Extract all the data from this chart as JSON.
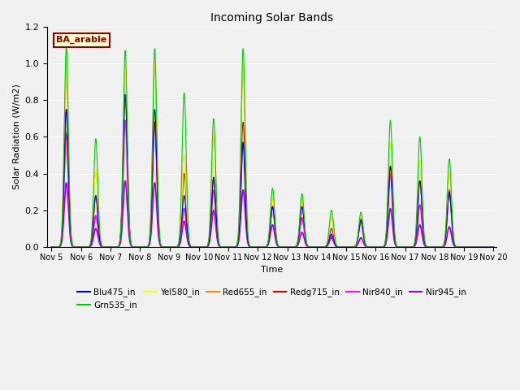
{
  "title": "Incoming Solar Bands",
  "xlabel": "Time",
  "ylabel": "Solar Radiation (W/m2)",
  "annotation_text": "BA_arable",
  "bg_color": "#f0f0f0",
  "ylim": [
    0.0,
    1.2
  ],
  "xlim": [
    4.85,
    20.1
  ],
  "series": [
    {
      "label": "Blu475_in",
      "color": "#0000cc",
      "lw": 0.8
    },
    {
      "label": "Grn535_in",
      "color": "#00cc00",
      "lw": 0.8
    },
    {
      "label": "Yel580_in",
      "color": "#ffff00",
      "lw": 0.8
    },
    {
      "label": "Red655_in",
      "color": "#ff8800",
      "lw": 0.8
    },
    {
      "label": "Redg715_in",
      "color": "#cc0000",
      "lw": 0.8
    },
    {
      "label": "Nir840_in",
      "color": "#ff00ff",
      "lw": 1.2
    },
    {
      "label": "Nir945_in",
      "color": "#9900cc",
      "lw": 1.2
    }
  ],
  "xtick_labels": [
    "Nov 5",
    "Nov 6",
    "Nov 7",
    "Nov 8",
    "Nov 9",
    "Nov 10",
    "Nov 11",
    "Nov 12",
    "Nov 13",
    "Nov 14",
    "Nov 15",
    "Nov 16",
    "Nov 17",
    "Nov 18",
    "Nov 19",
    "Nov 20"
  ],
  "xtick_positions": [
    5,
    6,
    7,
    8,
    9,
    10,
    11,
    12,
    13,
    14,
    15,
    16,
    17,
    18,
    19,
    20
  ],
  "day_peaks": {
    "5": {
      "Blu": 0.75,
      "Grn": 1.09,
      "Yel": 1.01,
      "Red": 1.01,
      "Redg": 0.75,
      "Nir840": 0.62,
      "Nir945": 0.35
    },
    "6": {
      "Blu": 0.28,
      "Grn": 0.59,
      "Yel": 0.42,
      "Red": 0.42,
      "Redg": 0.28,
      "Nir840": 0.17,
      "Nir945": 0.1
    },
    "7": {
      "Blu": 0.83,
      "Grn": 1.07,
      "Yel": 0.99,
      "Red": 0.99,
      "Redg": 0.83,
      "Nir840": 0.69,
      "Nir945": 0.36
    },
    "8": {
      "Blu": 0.75,
      "Grn": 1.08,
      "Yel": 1.01,
      "Red": 1.01,
      "Redg": 0.68,
      "Nir840": 0.68,
      "Nir945": 0.35
    },
    "9": {
      "Blu": 0.28,
      "Grn": 0.84,
      "Yel": 0.5,
      "Red": 0.5,
      "Redg": 0.4,
      "Nir840": 0.21,
      "Nir945": 0.14
    },
    "10": {
      "Blu": 0.38,
      "Grn": 0.7,
      "Yel": 0.62,
      "Red": 0.62,
      "Redg": 0.38,
      "Nir840": 0.31,
      "Nir945": 0.2
    },
    "11": {
      "Blu": 0.57,
      "Grn": 1.08,
      "Yel": 1.0,
      "Red": 1.0,
      "Redg": 0.68,
      "Nir840": 0.57,
      "Nir945": 0.31
    },
    "12": {
      "Blu": 0.22,
      "Grn": 0.32,
      "Yel": 0.27,
      "Red": 0.27,
      "Redg": 0.22,
      "Nir840": 0.22,
      "Nir945": 0.12
    },
    "13": {
      "Blu": 0.22,
      "Grn": 0.29,
      "Yel": 0.26,
      "Red": 0.26,
      "Redg": 0.22,
      "Nir840": 0.16,
      "Nir945": 0.08
    },
    "14": {
      "Blu": 0.07,
      "Grn": 0.2,
      "Yel": 0.16,
      "Red": 0.16,
      "Redg": 0.1,
      "Nir840": 0.06,
      "Nir945": 0.05
    },
    "15": {
      "Blu": 0.15,
      "Grn": 0.19,
      "Yel": 0.17,
      "Red": 0.17,
      "Redg": 0.15,
      "Nir840": 0.14,
      "Nir945": 0.05
    },
    "16": {
      "Blu": 0.44,
      "Grn": 0.69,
      "Yel": 0.57,
      "Red": 0.57,
      "Redg": 0.44,
      "Nir840": 0.4,
      "Nir945": 0.21
    },
    "17": {
      "Blu": 0.36,
      "Grn": 0.6,
      "Yel": 0.47,
      "Red": 0.47,
      "Redg": 0.36,
      "Nir840": 0.23,
      "Nir945": 0.12
    },
    "18": {
      "Blu": 0.3,
      "Grn": 0.48,
      "Yel": 0.41,
      "Red": 0.41,
      "Redg": 0.3,
      "Nir840": 0.31,
      "Nir945": 0.11
    },
    "19": {
      "Blu": 0.0,
      "Grn": 0.0,
      "Yel": 0.0,
      "Red": 0.0,
      "Redg": 0.0,
      "Nir840": 0.0,
      "Nir945": 0.0
    }
  }
}
